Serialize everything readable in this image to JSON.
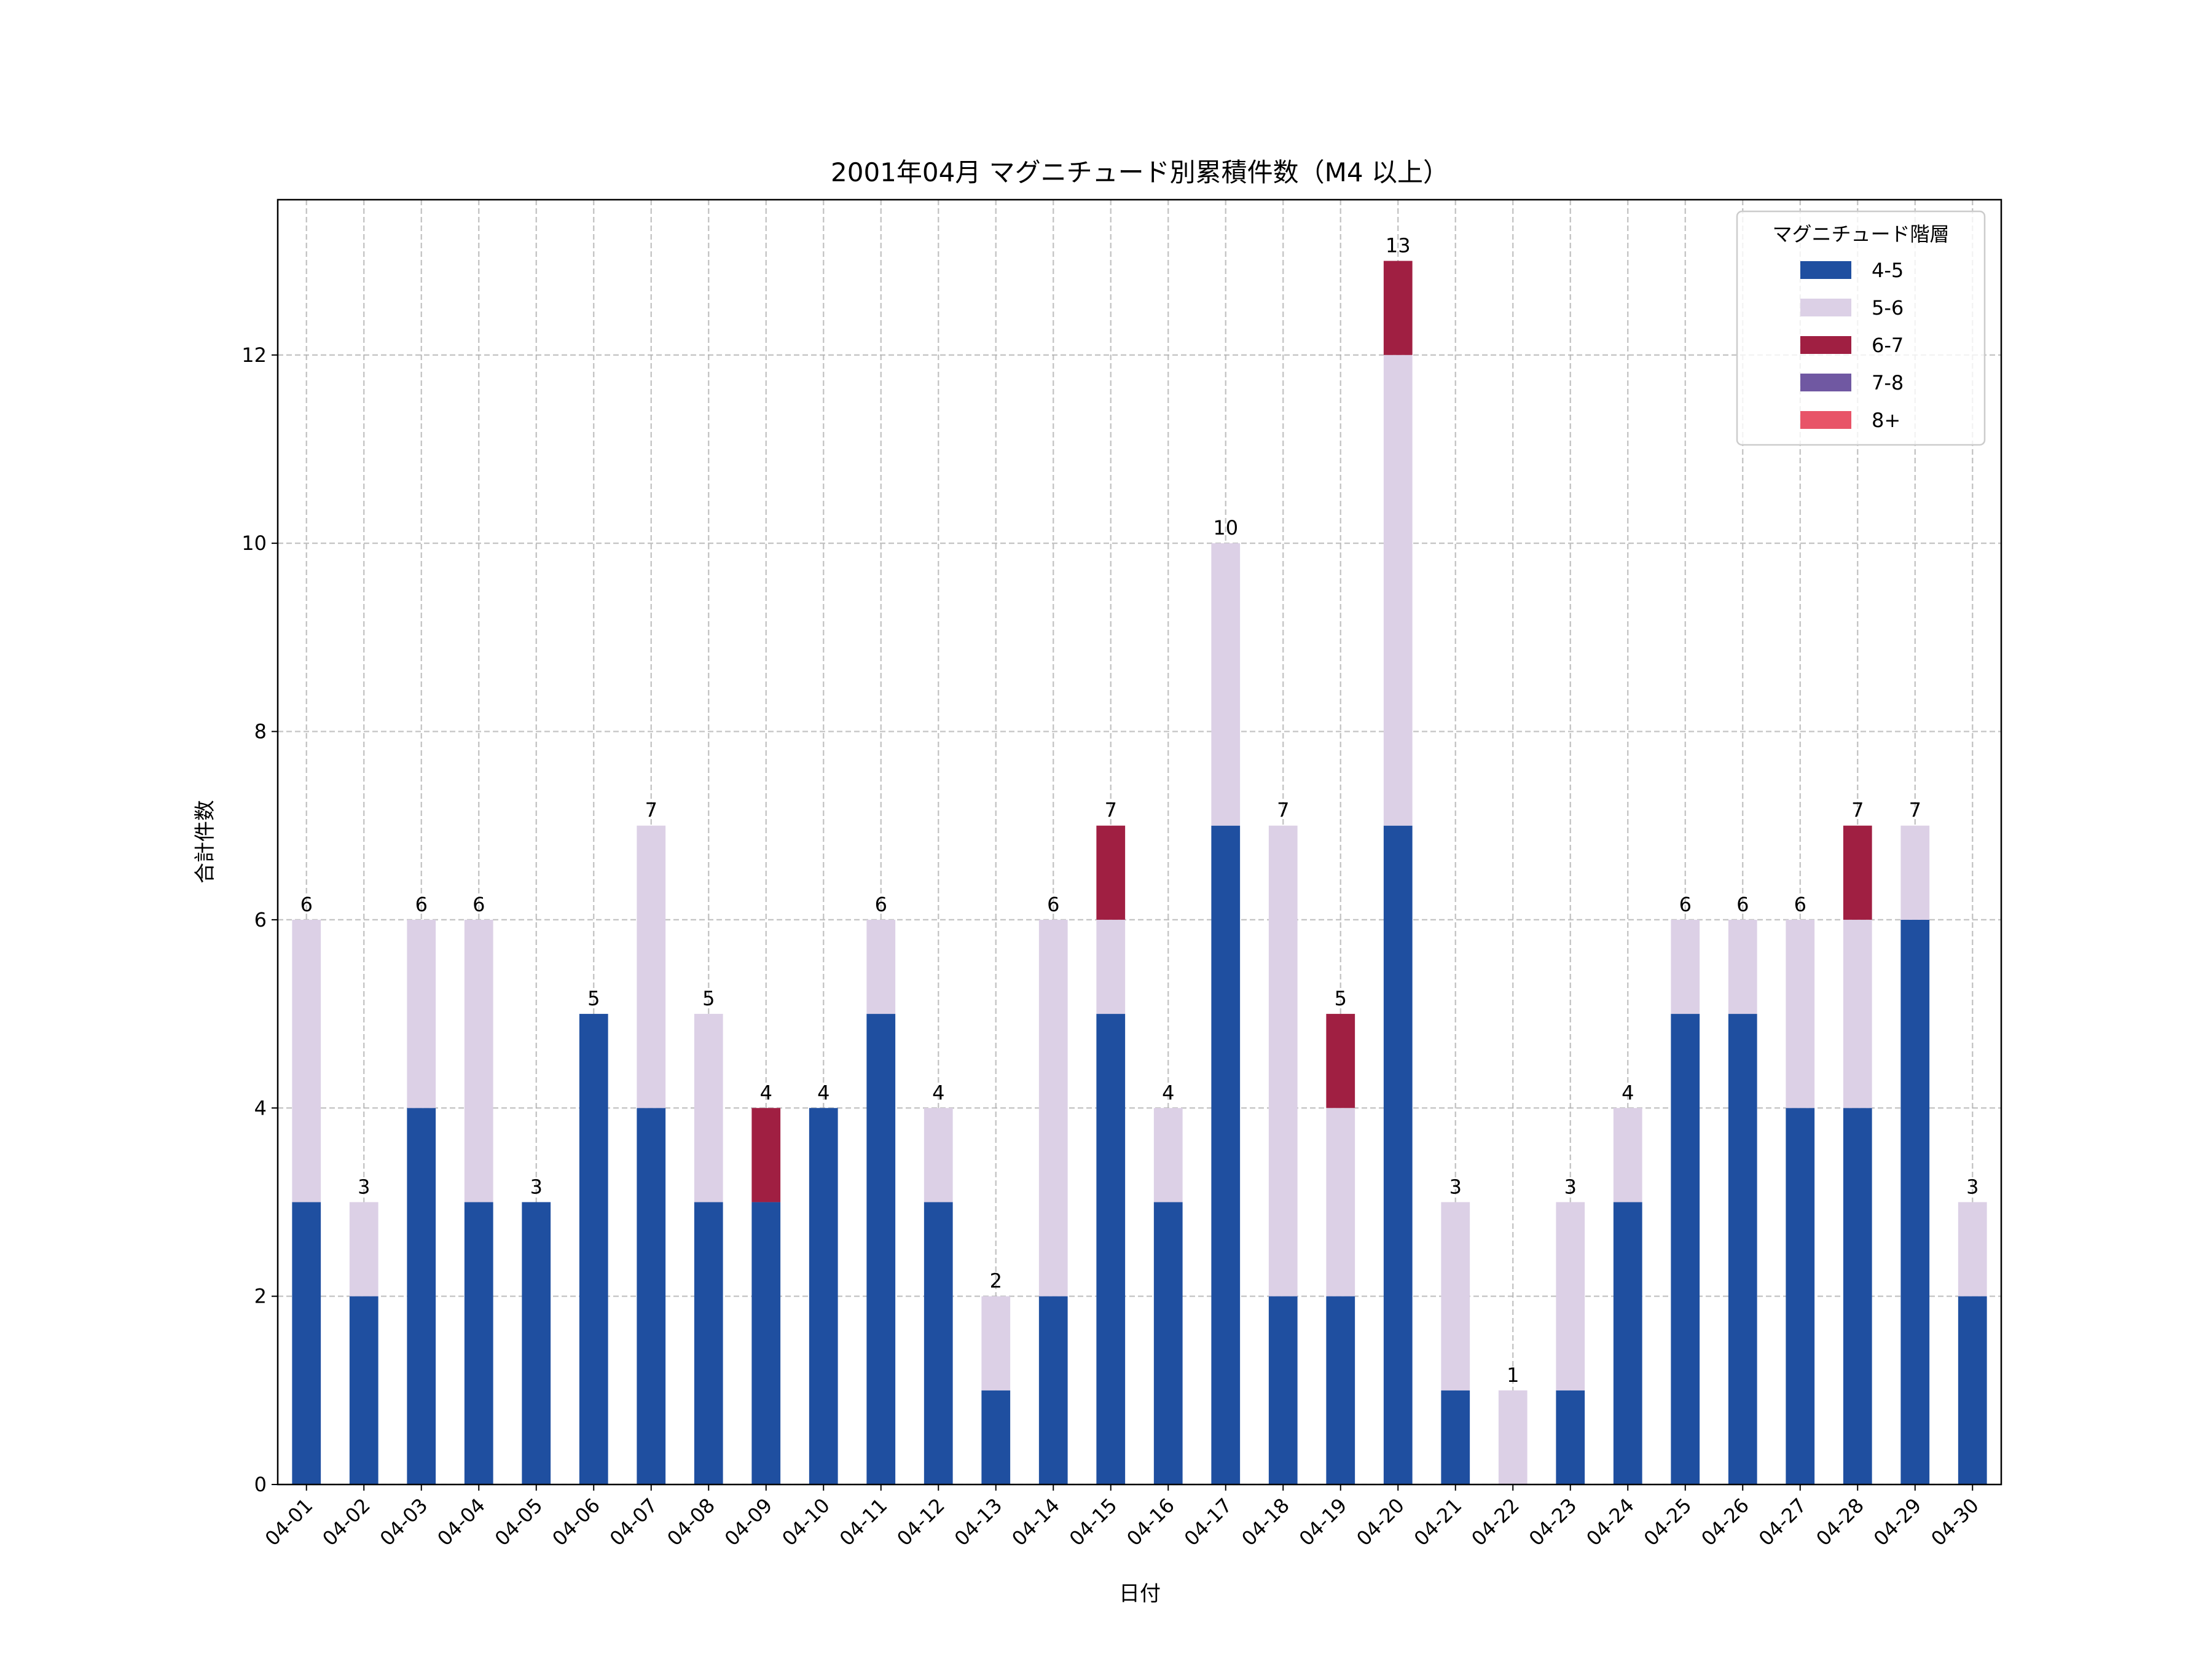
{
  "chart_data": {
    "type": "bar",
    "stacked": true,
    "title": "2001年04月 マグニチュード別累積件数（M4 以上）",
    "xlabel": "日付",
    "ylabel": "合計件数",
    "ylim": [
      0,
      13.65
    ],
    "yticks": [
      0,
      2,
      4,
      6,
      8,
      10,
      12
    ],
    "grid": true,
    "legend": {
      "title": "マグニチュード階層",
      "placement": "top-right"
    },
    "categories": [
      "04-01",
      "04-02",
      "04-03",
      "04-04",
      "04-05",
      "04-06",
      "04-07",
      "04-08",
      "04-09",
      "04-10",
      "04-11",
      "04-12",
      "04-13",
      "04-14",
      "04-15",
      "04-16",
      "04-17",
      "04-18",
      "04-19",
      "04-20",
      "04-21",
      "04-22",
      "04-23",
      "04-24",
      "04-25",
      "04-26",
      "04-27",
      "04-28",
      "04-29",
      "04-30"
    ],
    "series": [
      {
        "name": "4-5",
        "color": "#1f4fa0",
        "values": [
          3,
          2,
          4,
          3,
          3,
          5,
          4,
          3,
          3,
          4,
          5,
          3,
          1,
          2,
          5,
          3,
          7,
          2,
          2,
          7,
          1,
          0,
          1,
          3,
          5,
          5,
          4,
          4,
          6,
          2
        ]
      },
      {
        "name": "5-6",
        "color": "#dcd0e6",
        "values": [
          3,
          1,
          2,
          3,
          0,
          0,
          3,
          2,
          0,
          0,
          1,
          1,
          1,
          4,
          1,
          1,
          3,
          5,
          2,
          5,
          2,
          1,
          2,
          1,
          1,
          1,
          2,
          2,
          1,
          1
        ]
      },
      {
        "name": "6-7",
        "color": "#a01f42",
        "values": [
          0,
          0,
          0,
          0,
          0,
          0,
          0,
          0,
          1,
          0,
          0,
          0,
          0,
          0,
          1,
          0,
          0,
          0,
          1,
          1,
          0,
          0,
          0,
          0,
          0,
          0,
          0,
          1,
          0,
          0
        ]
      },
      {
        "name": "7-8",
        "color": "#7058a2",
        "values": [
          0,
          0,
          0,
          0,
          0,
          0,
          0,
          0,
          0,
          0,
          0,
          0,
          0,
          0,
          0,
          0,
          0,
          0,
          0,
          0,
          0,
          0,
          0,
          0,
          0,
          0,
          0,
          0,
          0,
          0
        ]
      },
      {
        "name": "8+",
        "color": "#e85468",
        "values": [
          0,
          0,
          0,
          0,
          0,
          0,
          0,
          0,
          0,
          0,
          0,
          0,
          0,
          0,
          0,
          0,
          0,
          0,
          0,
          0,
          0,
          0,
          0,
          0,
          0,
          0,
          0,
          0,
          0,
          0
        ]
      }
    ],
    "totals": [
      6,
      3,
      6,
      6,
      3,
      5,
      7,
      5,
      4,
      4,
      6,
      4,
      2,
      6,
      7,
      4,
      10,
      7,
      5,
      13,
      3,
      1,
      3,
      4,
      6,
      6,
      6,
      7,
      7,
      3
    ]
  }
}
